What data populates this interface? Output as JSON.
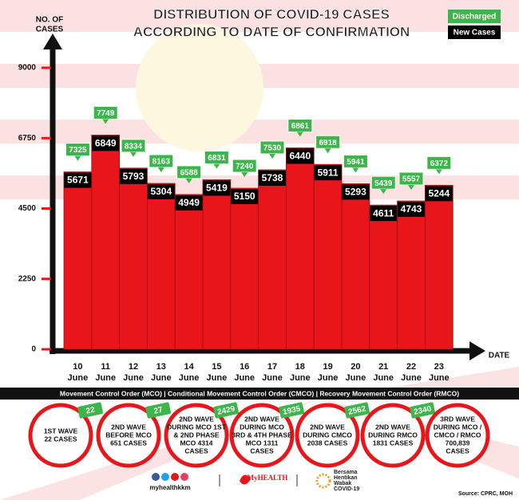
{
  "chart_data": {
    "type": "bar",
    "title": [
      "DISTRIBUTION OF COVID-19 CASES",
      "ACCORDING TO DATE OF CONFIRMATION"
    ],
    "y_label": [
      "NO. OF",
      "CASES"
    ],
    "x_label": "DATE",
    "categories": [
      "10 June",
      "11 June",
      "12 June",
      "13 June",
      "14 June",
      "15 June",
      "16 June",
      "17 June",
      "18 June",
      "19 June",
      "20 June",
      "21 June",
      "22 June",
      "23 June"
    ],
    "series": [
      {
        "name": "New Cases",
        "color": "#e8161b",
        "label_color": "#000000",
        "values": [
          5671,
          6849,
          5793,
          5304,
          4949,
          5419,
          5150,
          5738,
          6440,
          5911,
          5293,
          4611,
          4743,
          5244
        ]
      },
      {
        "name": "Discharged",
        "color": "#3cb54a",
        "values": [
          7325,
          7749,
          8334,
          8163,
          6588,
          6831,
          7240,
          7530,
          6861,
          6918,
          5941,
          5439,
          5557,
          6372
        ]
      }
    ],
    "ylim": [
      0,
      9000
    ],
    "yticks": [
      0,
      2250,
      4500,
      6750,
      9000
    ]
  },
  "footer": {
    "banner": "Movement Control Order (MCO) | Conditional Movement Control Order (CMCO) | Recovery Movement Control Order (RMCO)",
    "waves": [
      {
        "lines": [
          "1ST WAVE",
          "22 CASES"
        ],
        "badge": 22
      },
      {
        "lines": [
          "2ND WAVE",
          "BEFORE MCO",
          "651 CASES"
        ],
        "badge": 27
      },
      {
        "lines": [
          "2ND WAVE",
          "DURING MCO 1ST",
          "& 2ND PHASE",
          "MCO 4314",
          "CASES"
        ],
        "badge": 2429
      },
      {
        "lines": [
          "2ND WAVE",
          "DURING MCO",
          "3RD & 4TH PHASE",
          "MCO 1311",
          "CASES"
        ],
        "badge": 1935
      },
      {
        "lines": [
          "2ND WAVE",
          "DURING CMCO",
          "2038 CASES"
        ],
        "badge": 2562
      },
      {
        "lines": [
          "2ND WAVE",
          "DURING RMCO",
          "1831 CASES"
        ],
        "badge": 2340
      },
      {
        "lines": [
          "3RD WAVE",
          "DURING MCO /",
          "CMCO / RMCO",
          "700,839",
          "CASES"
        ]
      }
    ],
    "social": "myhealthkkm",
    "brand": "MyHEALTH",
    "campaign": [
      "Bersama",
      "Hentikan",
      "Wabak",
      "COVID-19"
    ],
    "source": "Source: CPRC, MOH"
  }
}
